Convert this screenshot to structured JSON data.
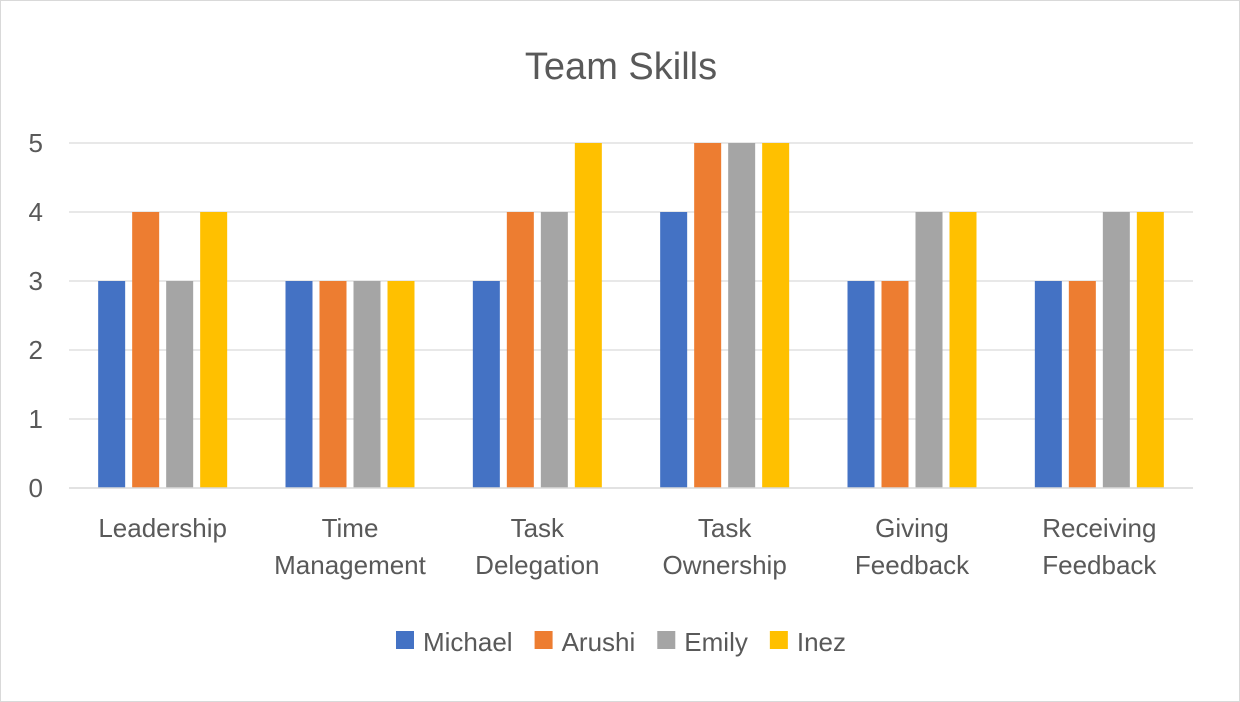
{
  "chart_data": {
    "type": "bar",
    "title": "Team Skills",
    "xlabel": "",
    "ylabel": "",
    "categories": [
      [
        "Leadership"
      ],
      [
        "Time",
        "Management"
      ],
      [
        "Task",
        "Delegation"
      ],
      [
        "Task",
        "Ownership"
      ],
      [
        "Giving",
        "Feedback"
      ],
      [
        "Receiving",
        "Feedback"
      ]
    ],
    "series": [
      {
        "name": "Michael",
        "color": "#4472C4",
        "values": [
          3,
          3,
          3,
          4,
          3,
          3
        ]
      },
      {
        "name": "Arushi",
        "color": "#ED7D31",
        "values": [
          4,
          3,
          4,
          5,
          3,
          3
        ]
      },
      {
        "name": "Emily",
        "color": "#A5A5A5",
        "values": [
          3,
          3,
          4,
          5,
          4,
          4
        ]
      },
      {
        "name": "Inez",
        "color": "#FFC000",
        "values": [
          4,
          3,
          5,
          5,
          4,
          4
        ]
      }
    ],
    "ylim": [
      0,
      5
    ],
    "yticks": [
      0,
      1,
      2,
      3,
      4,
      5
    ],
    "grid": true,
    "legend": "bottom"
  }
}
